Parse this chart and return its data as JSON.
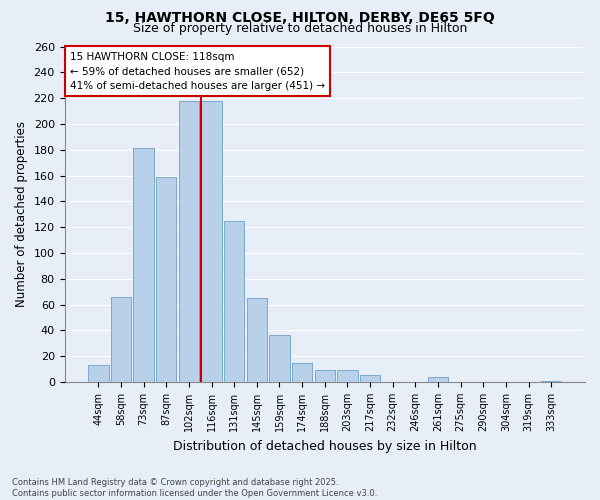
{
  "title1": "15, HAWTHORN CLOSE, HILTON, DERBY, DE65 5FQ",
  "title2": "Size of property relative to detached houses in Hilton",
  "xlabel": "Distribution of detached houses by size in Hilton",
  "ylabel": "Number of detached properties",
  "bin_labels": [
    "44sqm",
    "58sqm",
    "73sqm",
    "87sqm",
    "102sqm",
    "116sqm",
    "131sqm",
    "145sqm",
    "159sqm",
    "174sqm",
    "188sqm",
    "203sqm",
    "217sqm",
    "232sqm",
    "246sqm",
    "261sqm",
    "275sqm",
    "290sqm",
    "304sqm",
    "319sqm",
    "333sqm"
  ],
  "bar_heights": [
    13,
    66,
    181,
    159,
    218,
    218,
    125,
    65,
    36,
    15,
    9,
    9,
    5,
    0,
    0,
    4,
    0,
    0,
    0,
    0,
    1
  ],
  "bar_color": "#b8d0e8",
  "bar_edge_color": "#7aaad0",
  "highlight_line_index": 5,
  "annotation_text_lines": [
    "15 HAWTHORN CLOSE: 118sqm",
    "← 59% of detached houses are smaller (652)",
    "41% of semi-detached houses are larger (451) →"
  ],
  "vline_color": "#cc0000",
  "annotation_box_facecolor": "#ffffff",
  "annotation_box_edgecolor": "#cc0000",
  "ylim_max": 260,
  "yticks": [
    0,
    20,
    40,
    60,
    80,
    100,
    120,
    140,
    160,
    180,
    200,
    220,
    240,
    260
  ],
  "footer_line1": "Contains HM Land Registry data © Crown copyright and database right 2025.",
  "footer_line2": "Contains public sector information licensed under the Open Government Licence v3.0.",
  "bg_color": "#e8eef8",
  "grid_color": "#ffffff",
  "plot_bg_color": "#e8eef8"
}
